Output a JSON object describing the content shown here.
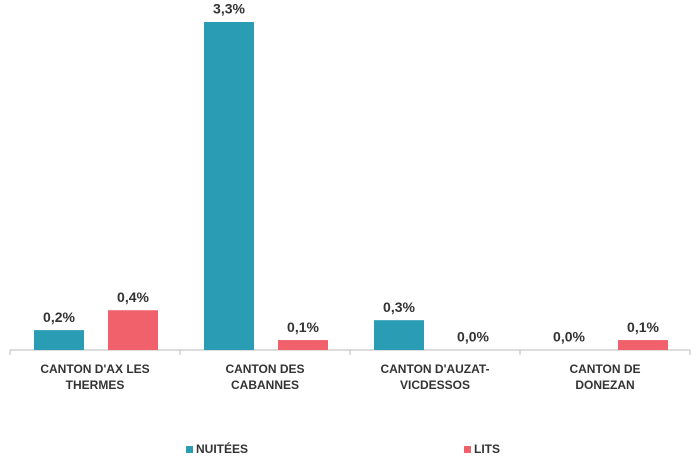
{
  "chart_data": {
    "type": "bar",
    "categories": [
      "CANTON D'AX LES\nTHERMES",
      "CANTON DES\nCABANNES",
      "CANTON D'AUZAT-\nVICDESSOS",
      "CANTON DE\nDONEZAN"
    ],
    "series": [
      {
        "name": "NUITÉES",
        "color": "#2a9db5",
        "values": [
          0.2,
          3.3,
          0.3,
          0.0
        ],
        "value_labels": [
          "0,2%",
          "3,3%",
          "0,3%",
          "0,0%"
        ]
      },
      {
        "name": "LITS",
        "color": "#f0616b",
        "values": [
          0.4,
          0.1,
          0.0,
          0.1
        ],
        "value_labels": [
          "0,4%",
          "0,1%",
          "0,0%",
          "0,1%"
        ]
      }
    ],
    "legend": "bottom"
  }
}
